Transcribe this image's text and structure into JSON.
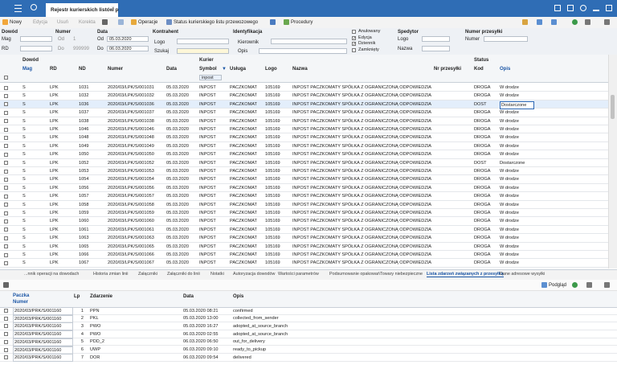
{
  "header": {
    "tab_title": "Rejestr kurierskich listów p"
  },
  "toolbar": {
    "buttons": [
      "Nowy",
      "Edycja",
      "Usuń",
      "Korekta",
      "Operacje",
      "Status kurierskiego listu przewozowego",
      "Procedury"
    ]
  },
  "filters": {
    "dowod": {
      "label": "Dowód",
      "mag": "Mag",
      "rd": "RD"
    },
    "numer": {
      "label": "Numer",
      "od": "Od",
      "do": "Do",
      "od_value": "1",
      "do_value": "999999"
    },
    "data": {
      "label": "Data",
      "od": "Od",
      "do": "Do",
      "od_value": "05.03.2020",
      "do_value": "06.03.2020"
    },
    "kontrahent": {
      "label": "Kontrahent",
      "logo": "Logo",
      "szukaj": "Szukaj"
    },
    "identyfikacja": {
      "label": "Identyfikacja",
      "kierownik": "Kierownik",
      "opis": "Opis"
    },
    "flags": [
      {
        "label": "Anulowany",
        "checked": false
      },
      {
        "label": "Edycja",
        "checked": true
      },
      {
        "label": "Dziennik",
        "checked": true
      },
      {
        "label": "Zamknięty",
        "checked": false
      }
    ],
    "spedytor": {
      "label": "Spedytor",
      "logo": "Logo",
      "nazwa": "Nazwa"
    },
    "numer_przesylki": {
      "label": "Numer przesyłki",
      "numer": "Numer"
    }
  },
  "grid": {
    "groups": [
      "Dowód",
      "Kurier",
      "Status"
    ],
    "columns": [
      "Mag",
      "RD",
      "ND",
      "Numer",
      "Data",
      "Symbol",
      "Usługa",
      "Logo",
      "Nazwa",
      "Nr przesyłki",
      "Kod",
      "Opis"
    ],
    "filter_text": "inpost",
    "selected_row": 2,
    "rows": [
      [
        "S",
        "LPK",
        "1031",
        "2020/03/LPK/S/001031",
        "05.03.2020",
        "INPOST",
        "PACZKOMAT",
        "105169",
        "INPOST PACZKOMATY SPÓŁKA Z OGRANICZONĄ ODPOWIEDZIA",
        null,
        "DROGA",
        "W drodze"
      ],
      [
        "S",
        "LPK",
        "1032",
        "2020/03/LPK/S/001032",
        "05.03.2020",
        "INPOST",
        "PACZKOMAT",
        "105169",
        "INPOST PACZKOMATY SPÓŁKA Z OGRANICZONĄ ODPOWIEDZIA",
        null,
        "DROGA",
        "W drodze"
      ],
      [
        "S",
        "LPK",
        "1036",
        "2020/03/LPK/S/001036",
        "05.03.2020",
        "INPOST",
        "PACZKOMAT",
        "105169",
        "INPOST PACZKOMATY SPÓŁKA Z OGRANICZONĄ ODPOWIEDZIA",
        null,
        "DOST",
        "Dostarczone"
      ],
      [
        "S",
        "LPK",
        "1037",
        "2020/03/LPK/S/001037",
        "05.03.2020",
        "INPOST",
        "PACZKOMAT",
        "105169",
        "INPOST PACZKOMATY SPÓŁKA Z OGRANICZONĄ ODPOWIEDZIA",
        null,
        "DROGA",
        "W drodze"
      ],
      [
        "S",
        "LPK",
        "1038",
        "2020/03/LPK/S/001038",
        "05.03.2020",
        "INPOST",
        "PACZKOMAT",
        "105169",
        "INPOST PACZKOMATY SPÓŁKA Z OGRANICZONĄ ODPOWIEDZIA",
        null,
        "DROGA",
        "W drodze"
      ],
      [
        "S",
        "LPK",
        "1046",
        "2020/03/LPK/S/001046",
        "05.03.2020",
        "INPOST",
        "PACZKOMAT",
        "105169",
        "INPOST PACZKOMATY SPÓŁKA Z OGRANICZONĄ ODPOWIEDZIA",
        null,
        "DROGA",
        "W drodze"
      ],
      [
        "S",
        "LPK",
        "1048",
        "2020/03/LPK/S/001048",
        "05.03.2020",
        "INPOST",
        "PACZKOMAT",
        "105169",
        "INPOST PACZKOMATY SPÓŁKA Z OGRANICZONĄ ODPOWIEDZIA",
        null,
        "DROGA",
        "W drodze"
      ],
      [
        "S",
        "LPK",
        "1049",
        "2020/03/LPK/S/001049",
        "05.03.2020",
        "INPOST",
        "PACZKOMAT",
        "105169",
        "INPOST PACZKOMATY SPÓŁKA Z OGRANICZONĄ ODPOWIEDZIA",
        null,
        "DROGA",
        "W drodze"
      ],
      [
        "S",
        "LPK",
        "1050",
        "2020/03/LPK/S/001050",
        "05.03.2020",
        "INPOST",
        "PACZKOMAT",
        "105169",
        "INPOST PACZKOMATY SPÓŁKA Z OGRANICZONĄ ODPOWIEDZIA",
        null,
        "DROGA",
        "W drodze"
      ],
      [
        "S",
        "LPK",
        "1052",
        "2020/03/LPK/S/001052",
        "05.03.2020",
        "INPOST",
        "PACZKOMAT",
        "105169",
        "INPOST PACZKOMATY SPÓŁKA Z OGRANICZONĄ ODPOWIEDZIA",
        null,
        "DOST",
        "Dostarczone"
      ],
      [
        "S",
        "LPK",
        "1053",
        "2020/03/LPK/S/001053",
        "05.03.2020",
        "INPOST",
        "PACZKOMAT",
        "105169",
        "INPOST PACZKOMATY SPÓŁKA Z OGRANICZONĄ ODPOWIEDZIA",
        null,
        "DROGA",
        "W drodze"
      ],
      [
        "S",
        "LPK",
        "1054",
        "2020/03/LPK/S/001054",
        "05.03.2020",
        "INPOST",
        "PACZKOMAT",
        "105169",
        "INPOST PACZKOMATY SPÓŁKA Z OGRANICZONĄ ODPOWIEDZIA",
        null,
        "DROGA",
        "W drodze"
      ],
      [
        "S",
        "LPK",
        "1056",
        "2020/03/LPK/S/001056",
        "05.03.2020",
        "INPOST",
        "PACZKOMAT",
        "105169",
        "INPOST PACZKOMATY SPÓŁKA Z OGRANICZONĄ ODPOWIEDZIA",
        null,
        "DROGA",
        "W drodze"
      ],
      [
        "S",
        "LPK",
        "1057",
        "2020/03/LPK/S/001057",
        "05.03.2020",
        "INPOST",
        "PACZKOMAT",
        "105169",
        "INPOST PACZKOMATY SPÓŁKA Z OGRANICZONĄ ODPOWIEDZIA",
        null,
        "DROGA",
        "W drodze"
      ],
      [
        "S",
        "LPK",
        "1058",
        "2020/03/LPK/S/001058",
        "05.03.2020",
        "INPOST",
        "PACZKOMAT",
        "105169",
        "INPOST PACZKOMATY SPÓŁKA Z OGRANICZONĄ ODPOWIEDZIA",
        null,
        "DROGA",
        "W drodze"
      ],
      [
        "S",
        "LPK",
        "1059",
        "2020/03/LPK/S/001059",
        "05.03.2020",
        "INPOST",
        "PACZKOMAT",
        "105169",
        "INPOST PACZKOMATY SPÓŁKA Z OGRANICZONĄ ODPOWIEDZIA",
        null,
        "DROGA",
        "W drodze"
      ],
      [
        "S",
        "LPK",
        "1060",
        "2020/03/LPK/S/001060",
        "05.03.2020",
        "INPOST",
        "PACZKOMAT",
        "105169",
        "INPOST PACZKOMATY SPÓŁKA Z OGRANICZONĄ ODPOWIEDZIA",
        null,
        "DROGA",
        "W drodze"
      ],
      [
        "S",
        "LPK",
        "1061",
        "2020/03/LPK/S/001061",
        "05.03.2020",
        "INPOST",
        "PACZKOMAT",
        "105169",
        "INPOST PACZKOMATY SPÓŁKA Z OGRANICZONĄ ODPOWIEDZIA",
        null,
        "DROGA",
        "W drodze"
      ],
      [
        "S",
        "LPK",
        "1063",
        "2020/03/LPK/S/001063",
        "05.03.2020",
        "INPOST",
        "PACZKOMAT",
        "105169",
        "INPOST PACZKOMATY SPÓŁKA Z OGRANICZONĄ ODPOWIEDZIA",
        null,
        "DROGA",
        "W drodze"
      ],
      [
        "S",
        "LPK",
        "1065",
        "2020/03/LPK/S/001065",
        "05.03.2020",
        "INPOST",
        "PACZKOMAT",
        "105169",
        "INPOST PACZKOMATY SPÓŁKA Z OGRANICZONĄ ODPOWIEDZIA",
        null,
        "DROGA",
        "W drodze"
      ],
      [
        "S",
        "LPK",
        "1066",
        "2020/03/LPK/S/001066",
        "05.03.2020",
        "INPOST",
        "PACZKOMAT",
        "105169",
        "INPOST PACZKOMATY SPÓŁKA Z OGRANICZONĄ ODPOWIEDZIA",
        null,
        "DROGA",
        "W drodze"
      ],
      [
        "S",
        "LPK",
        "1067",
        "2020/03/LPK/S/001067",
        "05.03.2020",
        "INPOST",
        "PACZKOMAT",
        "105169",
        "INPOST PACZKOMATY SPÓŁKA Z OGRANICZONĄ ODPOWIEDZIA",
        null,
        "DROGA",
        "W drodze"
      ]
    ]
  },
  "bottom": {
    "tabs": [
      "...nnik operacji na dowodach",
      "Historia zmian linii",
      "Załączniki",
      "Załączniki do linii",
      "Notatki",
      "Autoryzacja dowodów",
      "Wartości parametrów",
      "Podsumowanie opakowań",
      "Towary niebezpieczne",
      "Lista zdarzeń związanych z przesyłką",
      "Dane adresowe wysyłki"
    ],
    "active_tab": 9,
    "preview": "Podgląd",
    "group": "Paczka",
    "columns": [
      "Numer",
      "Lp",
      "Zdarzenie",
      "Data",
      "Opis"
    ],
    "rows": [
      [
        "2020/03/PRK/S/001160",
        "1",
        "PPN",
        "05.03.2020 08:21",
        "confirmed"
      ],
      [
        "2020/03/PRK/S/001160",
        "2",
        "PKL",
        "05.03.2020 13:00",
        "collected_from_sender"
      ],
      [
        "2020/03/PRK/S/001160",
        "3",
        "PWO",
        "05.03.2020 16:27",
        "adopted_at_source_branch"
      ],
      [
        "2020/03/PRK/S/001160",
        "4",
        "PWO",
        "06.03.2020 02:55",
        "adopted_at_source_branch"
      ],
      [
        "2020/03/PRK/S/001160",
        "5",
        "PDD_2",
        "06.03.2020 06:50",
        "out_for_delivery"
      ],
      [
        "2020/03/PRK/S/001160",
        "6",
        "UWP",
        "06.03.2020 09:10",
        "ready_to_pickup"
      ],
      [
        "2020/03/PRK/S/001160",
        "7",
        "DOR",
        "06.03.2020 09:54",
        "delivered"
      ]
    ]
  }
}
